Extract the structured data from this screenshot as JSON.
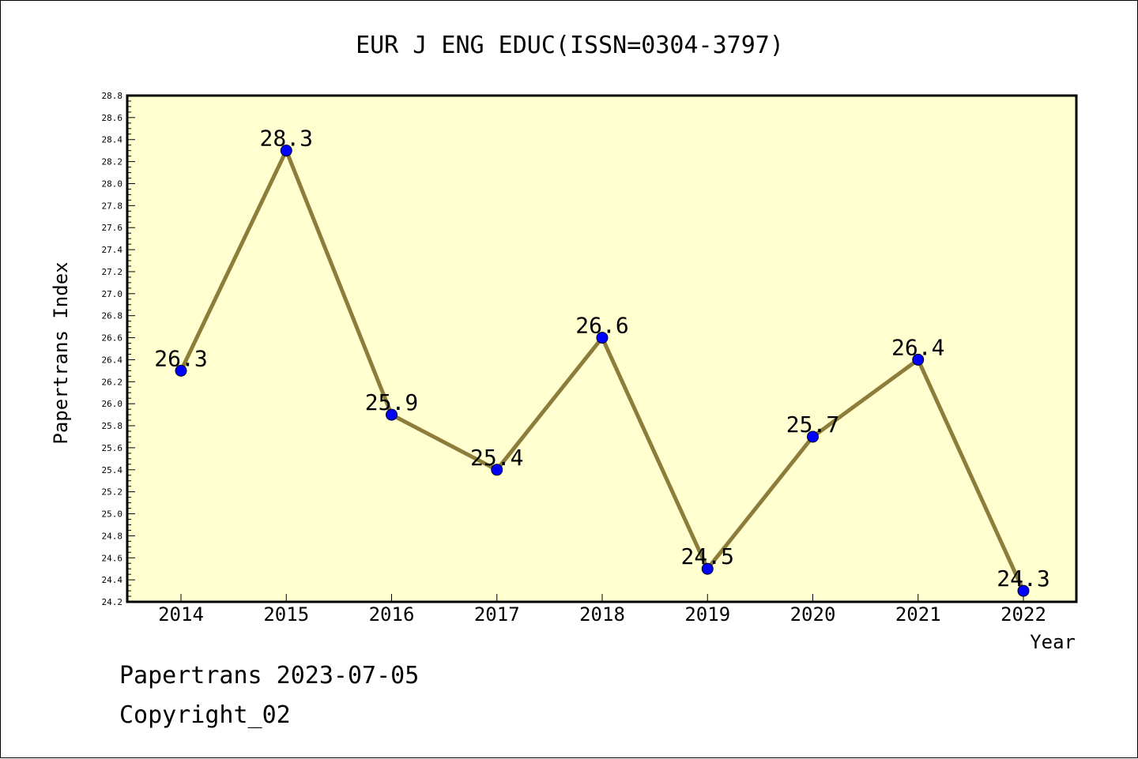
{
  "colors": {
    "plot_bg": "#ffffd0",
    "line": "#8c7d3a",
    "marker": "#0000ff",
    "frame": "#000000"
  },
  "footer": {
    "line1": "Papertrans 2023-07-05",
    "line2": "Copyright_02"
  },
  "chart_data": {
    "type": "line",
    "title": "EUR J ENG EDUC(ISSN=0304-3797)",
    "xlabel": "Year",
    "ylabel": "Papertrans Index",
    "categories": [
      "2014",
      "2015",
      "2016",
      "2017",
      "2018",
      "2019",
      "2020",
      "2021",
      "2022"
    ],
    "series": [
      {
        "values": [
          26.3,
          28.3,
          25.9,
          25.4,
          26.6,
          24.5,
          25.7,
          26.4,
          24.3
        ]
      }
    ],
    "data_labels": [
      "26.3",
      "28.3",
      "25.9",
      "25.4",
      "26.6",
      "24.5",
      "25.7",
      "26.4",
      "24.3"
    ],
    "ylim": [
      24.2,
      28.8
    ],
    "y_ticks": [
      "24.2",
      "24.4",
      "24.6",
      "24.8",
      "25.0",
      "25.2",
      "25.4",
      "25.6",
      "25.8",
      "26.0",
      "26.2",
      "26.4",
      "26.6",
      "26.8",
      "27.0",
      "27.2",
      "27.4",
      "27.6",
      "27.8",
      "28.0",
      "28.2",
      "28.4",
      "28.6",
      "28.8"
    ],
    "grid": false,
    "legend": "none"
  }
}
